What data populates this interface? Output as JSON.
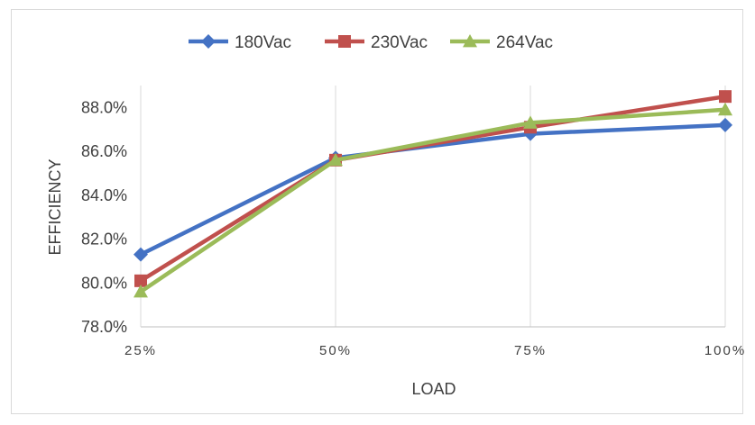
{
  "chart_data": {
    "type": "line",
    "xlabel": "LOAD",
    "ylabel": "EFFICIENCY",
    "categories": [
      "25%",
      "50%",
      "75%",
      "100%"
    ],
    "ylim": [
      78.0,
      89.0
    ],
    "yticks": [
      "78.0%",
      "80.0%",
      "82.0%",
      "84.0%",
      "86.0%",
      "88.0%"
    ],
    "ytick_values": [
      78,
      80,
      82,
      84,
      86,
      88
    ],
    "grid": "vertical",
    "legend": "top",
    "series": [
      {
        "name": "180Vac",
        "values": [
          81.3,
          85.7,
          86.8,
          87.2
        ],
        "color": "#4472c4",
        "marker": "diamond"
      },
      {
        "name": "230Vac",
        "values": [
          80.1,
          85.6,
          87.1,
          88.5
        ],
        "color": "#c0504d",
        "marker": "square"
      },
      {
        "name": "264Vac",
        "values": [
          79.6,
          85.6,
          87.3,
          87.9
        ],
        "color": "#9bbb59",
        "marker": "triangle"
      }
    ]
  }
}
